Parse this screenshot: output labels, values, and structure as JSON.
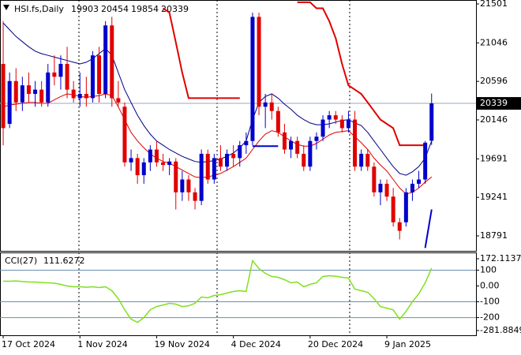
{
  "chart_data": [
    {
      "type": "candlestick",
      "title": "HSI.fs,Daily",
      "categories": [
        "17 Oct 2024",
        null,
        null,
        null,
        null,
        null,
        null,
        null,
        null,
        null,
        null,
        null,
        "1 Nov 2024",
        null,
        null,
        null,
        null,
        null,
        null,
        null,
        null,
        null,
        null,
        null,
        "19 Nov 2024",
        null,
        null,
        null,
        null,
        null,
        null,
        null,
        null,
        null,
        null,
        null,
        "4 Dec 2024",
        null,
        null,
        null,
        null,
        null,
        null,
        null,
        null,
        null,
        null,
        null,
        "20 Dec 2024",
        null,
        null,
        null,
        null,
        null,
        null,
        null,
        null,
        null,
        null,
        null,
        "9 Jan 2025",
        null,
        null,
        null,
        null,
        null,
        null,
        null
      ],
      "open": [
        20800,
        20100,
        20600,
        20350,
        20550,
        20450,
        20500,
        20350,
        20700,
        20650,
        20800,
        20500,
        20400,
        20450,
        20400,
        20900,
        20450,
        21250,
        20400,
        20300,
        19650,
        19700,
        19500,
        19650,
        19800,
        19650,
        19620,
        19660,
        19300,
        19450,
        19300,
        19200,
        19750,
        19450,
        19700,
        19600,
        19750,
        19700,
        19850,
        19900,
        21350,
        20300,
        20350,
        20250,
        20000,
        19800,
        19900,
        19750,
        19600,
        19900,
        19950,
        20150,
        20200,
        20150,
        20050,
        20150,
        19600,
        19750,
        19600,
        19300,
        19400,
        19250,
        18950,
        18950,
        19300,
        19400,
        19450,
        19903
      ],
      "high": [
        21300,
        20700,
        20750,
        20650,
        20700,
        20600,
        20600,
        20800,
        20900,
        20900,
        21000,
        20600,
        20700,
        20650,
        20950,
        21000,
        21300,
        21350,
        20600,
        20350,
        19800,
        19750,
        19700,
        19850,
        19900,
        19750,
        19700,
        19700,
        19550,
        19500,
        19350,
        19800,
        19800,
        19750,
        19850,
        19800,
        19850,
        19900,
        20000,
        21400,
        21400,
        20450,
        20450,
        20300,
        20100,
        19950,
        19950,
        19850,
        19950,
        20000,
        20200,
        20250,
        20250,
        20200,
        20250,
        20250,
        19800,
        19800,
        19650,
        19450,
        19450,
        19350,
        19000,
        19350,
        19450,
        19550,
        19900,
        20454
      ],
      "low": [
        19850,
        20050,
        20250,
        20250,
        20350,
        20300,
        20300,
        20300,
        20550,
        20500,
        20400,
        20350,
        20300,
        20300,
        20350,
        20350,
        20400,
        20300,
        20300,
        19600,
        19550,
        19400,
        19400,
        19550,
        19600,
        19550,
        19500,
        19100,
        19200,
        19200,
        19100,
        19150,
        19400,
        19400,
        19550,
        19550,
        19600,
        19600,
        19750,
        19850,
        20200,
        20050,
        20150,
        19950,
        19750,
        19700,
        19700,
        19550,
        19550,
        19800,
        19900,
        20050,
        20100,
        20000,
        20000,
        19550,
        19550,
        19550,
        19250,
        19150,
        19200,
        18900,
        18750,
        18900,
        19200,
        19350,
        19400,
        19854
      ],
      "close": [
        20050,
        20600,
        20350,
        20550,
        20450,
        20500,
        20350,
        20700,
        20650,
        20800,
        20500,
        20400,
        20450,
        20400,
        20900,
        20450,
        21250,
        20400,
        20350,
        19650,
        19700,
        19500,
        19650,
        19800,
        19650,
        19620,
        19660,
        19300,
        19450,
        19300,
        19200,
        19750,
        19450,
        19700,
        19600,
        19750,
        19700,
        19850,
        19900,
        21350,
        20300,
        20350,
        20250,
        20000,
        19800,
        19900,
        19750,
        19600,
        19900,
        19950,
        20150,
        20200,
        20150,
        20050,
        20150,
        19600,
        19750,
        19600,
        19300,
        19400,
        19250,
        18950,
        18850,
        19300,
        19400,
        19450,
        19880,
        20339
      ],
      "up_color": "#0000cc",
      "down_color": "#e00000",
      "lines": [
        {
          "color": "#000080",
          "values": [
            21280,
            21200,
            21120,
            21060,
            21000,
            20950,
            20920,
            20900,
            20880,
            20860,
            20840,
            20820,
            20800,
            20820,
            20860,
            20920,
            20980,
            20900,
            20700,
            20500,
            20350,
            20200,
            20080,
            19980,
            19900,
            19850,
            19800,
            19760,
            19720,
            19690,
            19660,
            19650,
            19660,
            19670,
            19690,
            19720,
            19760,
            19820,
            19900,
            20150,
            20350,
            20420,
            20450,
            20400,
            20330,
            20270,
            20200,
            20150,
            20110,
            20090,
            20090,
            20100,
            20120,
            20140,
            20150,
            20110,
            20080,
            20000,
            19900,
            19800,
            19700,
            19600,
            19520,
            19500,
            19540,
            19600,
            19700,
            19900
          ]
        },
        {
          "color": "#e00000",
          "values": [
            20300,
            20320,
            20330,
            20340,
            20350,
            20350,
            20340,
            20340,
            20380,
            20420,
            20450,
            20440,
            20420,
            20410,
            20420,
            20430,
            20450,
            20430,
            20300,
            20150,
            20000,
            19900,
            19820,
            19750,
            19700,
            19660,
            19640,
            19600,
            19560,
            19520,
            19480,
            19470,
            19480,
            19500,
            19520,
            19560,
            19600,
            19650,
            19700,
            19800,
            19900,
            19980,
            20020,
            20000,
            19950,
            19900,
            19860,
            19840,
            19840,
            19870,
            19920,
            19970,
            20000,
            20010,
            20020,
            19950,
            19880,
            19800,
            19700,
            19620,
            19550,
            19450,
            19350,
            19280,
            19300,
            19350,
            19420,
            19480
          ]
        },
        {
          "color": "#e00000",
          "values": [
            null,
            null,
            null,
            null,
            null,
            null,
            null,
            null,
            null,
            null,
            null,
            null,
            null,
            null,
            null,
            null,
            null,
            null,
            null,
            null,
            null,
            null,
            null,
            null,
            null,
            21450,
            21400,
            21050,
            20700,
            20400,
            20400,
            20400,
            20400,
            20400,
            20400,
            20400,
            20400,
            20400,
            null,
            null,
            null,
            null,
            null,
            null,
            null,
            null,
            21520,
            21520,
            21520,
            21450,
            21450,
            21300,
            21100,
            20800,
            20550,
            20500,
            20450,
            20350,
            20250,
            20150,
            20100,
            20050,
            19850,
            19850,
            19850,
            19850,
            19850,
            null
          ]
        },
        {
          "color": "#0000cc",
          "values": [
            null,
            null,
            null,
            null,
            null,
            null,
            null,
            null,
            null,
            null,
            null,
            null,
            null,
            null,
            null,
            null,
            null,
            null,
            null,
            null,
            null,
            null,
            null,
            null,
            null,
            null,
            null,
            null,
            null,
            null,
            null,
            null,
            null,
            null,
            null,
            null,
            null,
            null,
            null,
            19840,
            19840,
            19840,
            19840,
            19840,
            null,
            null,
            null,
            null,
            null,
            null,
            null,
            null,
            null,
            null,
            null,
            null,
            null,
            null,
            null,
            null,
            null,
            null,
            null,
            null,
            null,
            null,
            null,
            null
          ]
        },
        {
          "color": "#0000cc",
          "values": [
            null,
            null,
            null,
            null,
            null,
            null,
            null,
            null,
            null,
            null,
            null,
            null,
            null,
            null,
            null,
            null,
            null,
            null,
            null,
            null,
            null,
            null,
            null,
            null,
            null,
            null,
            null,
            null,
            null,
            null,
            null,
            null,
            null,
            null,
            null,
            null,
            null,
            null,
            null,
            null,
            null,
            null,
            null,
            null,
            null,
            null,
            null,
            null,
            null,
            null,
            null,
            null,
            null,
            null,
            null,
            null,
            null,
            null,
            null,
            null,
            null,
            null,
            null,
            null,
            null,
            null,
            18650,
            19100
          ]
        }
      ],
      "ylim": [
        18616,
        21547
      ],
      "yticks": [
        21501,
        21046,
        20596,
        20146,
        19691,
        19241,
        18791
      ]
    },
    {
      "type": "line",
      "name": "CCI(27)",
      "color": "#80e020",
      "values": [
        30,
        30,
        32,
        28,
        25,
        25,
        22,
        20,
        18,
        10,
        0,
        -5,
        -5,
        -8,
        -5,
        -10,
        -5,
        -30,
        -80,
        -150,
        -210,
        -230,
        -200,
        -150,
        -130,
        -120,
        -110,
        -115,
        -130,
        -125,
        -110,
        -70,
        -75,
        -60,
        -55,
        -45,
        -35,
        -30,
        -35,
        160,
        110,
        80,
        60,
        55,
        40,
        20,
        25,
        -5,
        10,
        20,
        60,
        65,
        62,
        55,
        50,
        -20,
        -30,
        -40,
        -80,
        -130,
        -140,
        -150,
        -210,
        -160,
        -100,
        -50,
        20,
        111.6272
      ],
      "ylim": [
        -281.8849,
        172.1137
      ],
      "yticks": [
        172.1137,
        100,
        {
          "value": 0,
          "label": "0.00"
        },
        -100,
        -200,
        -281.8849
      ],
      "levels": [
        100,
        -100,
        -200
      ],
      "level_color": "#6a8fb0"
    }
  ]
}
